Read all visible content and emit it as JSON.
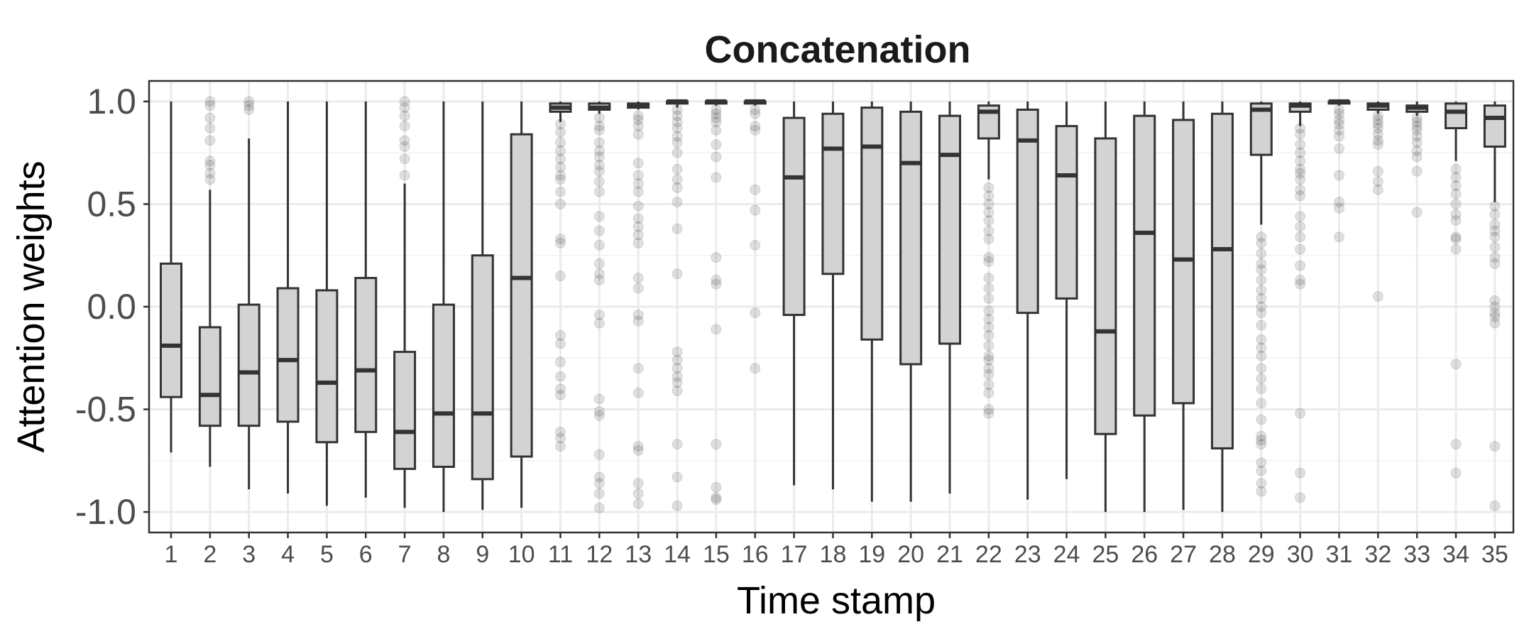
{
  "chart_data": {
    "type": "box",
    "title": "Concatenation",
    "xlabel": "Time stamp",
    "ylabel": "Attention weights",
    "ylim": [
      -1.1,
      1.1
    ],
    "y_ticks": [
      1.0,
      0.5,
      0.0,
      -0.5,
      -1.0
    ],
    "y_tick_labels": [
      "1.0",
      "0.5",
      "0.0",
      "-0.5",
      "-1.0"
    ],
    "grid": true,
    "colors": {
      "box_fill": "#d3d3d3",
      "box_line": "#333333",
      "outlier": "#000000",
      "grid_major": "#ebebeb",
      "grid_minor": "#f2f2f2",
      "panel_border": "#333333"
    },
    "categories": [
      "1",
      "2",
      "3",
      "4",
      "5",
      "6",
      "7",
      "8",
      "9",
      "10",
      "11",
      "12",
      "13",
      "14",
      "15",
      "16",
      "17",
      "18",
      "19",
      "20",
      "21",
      "22",
      "23",
      "24",
      "25",
      "26",
      "27",
      "28",
      "29",
      "30",
      "31",
      "32",
      "33",
      "34",
      "35"
    ],
    "boxes": [
      {
        "category": "1",
        "whisker_low": -0.71,
        "q1": -0.44,
        "median": -0.19,
        "q3": 0.21,
        "whisker_high": 1.0,
        "outliers": []
      },
      {
        "category": "2",
        "whisker_low": -0.78,
        "q1": -0.58,
        "median": -0.43,
        "q3": -0.1,
        "whisker_high": 0.57,
        "outliers": [
          1.0,
          0.98,
          0.92,
          0.87,
          0.81,
          0.71,
          0.69,
          0.65,
          0.62
        ]
      },
      {
        "category": "3",
        "whisker_low": -0.89,
        "q1": -0.58,
        "median": -0.32,
        "q3": 0.01,
        "whisker_high": 0.82,
        "outliers": [
          1.0,
          0.98,
          0.96
        ]
      },
      {
        "category": "4",
        "whisker_low": -0.91,
        "q1": -0.56,
        "median": -0.26,
        "q3": 0.09,
        "whisker_high": 1.0,
        "outliers": []
      },
      {
        "category": "5",
        "whisker_low": -0.97,
        "q1": -0.66,
        "median": -0.37,
        "q3": 0.08,
        "whisker_high": 1.0,
        "outliers": []
      },
      {
        "category": "6",
        "whisker_low": -0.93,
        "q1": -0.61,
        "median": -0.31,
        "q3": 0.14,
        "whisker_high": 1.0,
        "outliers": []
      },
      {
        "category": "7",
        "whisker_low": -0.98,
        "q1": -0.79,
        "median": -0.61,
        "q3": -0.22,
        "whisker_high": 0.6,
        "outliers": [
          1.0,
          0.97,
          0.93,
          0.88,
          0.81,
          0.78,
          0.72,
          0.64
        ]
      },
      {
        "category": "8",
        "whisker_low": -1.0,
        "q1": -0.78,
        "median": -0.52,
        "q3": 0.01,
        "whisker_high": 1.0,
        "outliers": []
      },
      {
        "category": "9",
        "whisker_low": -0.99,
        "q1": -0.84,
        "median": -0.52,
        "q3": 0.25,
        "whisker_high": 1.0,
        "outliers": []
      },
      {
        "category": "10",
        "whisker_low": -0.98,
        "q1": -0.73,
        "median": 0.14,
        "q3": 0.84,
        "whisker_high": 1.0,
        "outliers": []
      },
      {
        "category": "11",
        "whisker_low": 0.9,
        "q1": 0.95,
        "median": 0.97,
        "q3": 0.99,
        "whisker_high": 1.0,
        "outliers": [
          0.89,
          0.85,
          0.8,
          0.76,
          0.72,
          0.68,
          0.64,
          0.62,
          0.56,
          0.5,
          0.33,
          0.31,
          0.15,
          -0.14,
          -0.18,
          -0.27,
          -0.34,
          -0.4,
          -0.43,
          -0.61,
          -0.64,
          -0.68
        ]
      },
      {
        "category": "12",
        "whisker_low": 0.94,
        "q1": 0.96,
        "median": 0.97,
        "q3": 0.99,
        "whisker_high": 1.0,
        "outliers": [
          0.92,
          0.88,
          0.86,
          0.8,
          0.76,
          0.73,
          0.69,
          0.66,
          0.61,
          0.56,
          0.44,
          0.37,
          0.3,
          0.21,
          0.16,
          0.13,
          -0.04,
          -0.08,
          -0.45,
          -0.51,
          -0.53,
          -0.72,
          -0.83,
          -0.86,
          -0.91,
          -0.98
        ]
      },
      {
        "category": "13",
        "whisker_low": 0.96,
        "q1": 0.97,
        "median": 0.98,
        "q3": 0.99,
        "whisker_high": 1.0,
        "outliers": [
          0.93,
          0.91,
          0.88,
          0.84,
          0.7,
          0.64,
          0.6,
          0.56,
          0.49,
          0.43,
          0.39,
          0.35,
          0.31,
          0.14,
          0.09,
          -0.04,
          -0.07,
          -0.3,
          -0.42,
          -0.68,
          -0.7,
          -0.86,
          -0.91,
          -0.96
        ]
      },
      {
        "category": "14",
        "whisker_low": 0.97,
        "q1": 0.99,
        "median": 1.0,
        "q3": 1.0,
        "whisker_high": 1.0,
        "outliers": [
          0.96,
          0.93,
          0.9,
          0.87,
          0.83,
          0.8,
          0.75,
          0.67,
          0.62,
          0.58,
          0.51,
          0.38,
          0.16,
          -0.22,
          -0.26,
          -0.3,
          -0.34,
          -0.37,
          -0.41,
          -0.67,
          -0.83,
          -0.97
        ]
      },
      {
        "category": "15",
        "whisker_low": 0.98,
        "q1": 0.99,
        "median": 1.0,
        "q3": 1.0,
        "whisker_high": 1.0,
        "outliers": [
          0.96,
          0.94,
          0.92,
          0.9,
          0.86,
          0.79,
          0.73,
          0.63,
          0.24,
          0.13,
          0.11,
          -0.11,
          -0.67,
          -0.88,
          -0.93,
          -0.94
        ]
      },
      {
        "category": "16",
        "whisker_low": 0.98,
        "q1": 0.99,
        "median": 1.0,
        "q3": 1.0,
        "whisker_high": 1.0,
        "outliers": [
          0.96,
          0.94,
          0.88,
          0.86,
          0.57,
          0.47,
          0.3,
          -0.03,
          -0.3
        ]
      },
      {
        "category": "17",
        "whisker_low": -0.87,
        "q1": -0.04,
        "median": 0.63,
        "q3": 0.92,
        "whisker_high": 1.0,
        "outliers": []
      },
      {
        "category": "18",
        "whisker_low": -0.89,
        "q1": 0.16,
        "median": 0.77,
        "q3": 0.94,
        "whisker_high": 1.0,
        "outliers": []
      },
      {
        "category": "19",
        "whisker_low": -0.95,
        "q1": -0.16,
        "median": 0.78,
        "q3": 0.97,
        "whisker_high": 1.0,
        "outliers": []
      },
      {
        "category": "20",
        "whisker_low": -0.95,
        "q1": -0.28,
        "median": 0.7,
        "q3": 0.95,
        "whisker_high": 1.0,
        "outliers": []
      },
      {
        "category": "21",
        "whisker_low": -0.91,
        "q1": -0.18,
        "median": 0.74,
        "q3": 0.93,
        "whisker_high": 1.0,
        "outliers": []
      },
      {
        "category": "22",
        "whisker_low": 0.62,
        "q1": 0.82,
        "median": 0.95,
        "q3": 0.98,
        "whisker_high": 1.0,
        "outliers": [
          0.58,
          0.54,
          0.5,
          0.46,
          0.42,
          0.37,
          0.33,
          0.24,
          0.22,
          0.14,
          0.09,
          0.04,
          -0.02,
          -0.06,
          -0.1,
          -0.14,
          -0.19,
          -0.24,
          -0.26,
          -0.3,
          -0.33,
          -0.38,
          -0.42,
          -0.5,
          -0.52
        ]
      },
      {
        "category": "23",
        "whisker_low": -0.94,
        "q1": -0.03,
        "median": 0.81,
        "q3": 0.96,
        "whisker_high": 1.0,
        "outliers": []
      },
      {
        "category": "24",
        "whisker_low": -0.84,
        "q1": 0.04,
        "median": 0.64,
        "q3": 0.88,
        "whisker_high": 1.0,
        "outliers": []
      },
      {
        "category": "25",
        "whisker_low": -1.0,
        "q1": -0.62,
        "median": -0.12,
        "q3": 0.82,
        "whisker_high": 1.0,
        "outliers": []
      },
      {
        "category": "26",
        "whisker_low": -1.0,
        "q1": -0.53,
        "median": 0.36,
        "q3": 0.93,
        "whisker_high": 1.0,
        "outliers": []
      },
      {
        "category": "27",
        "whisker_low": -0.99,
        "q1": -0.47,
        "median": 0.23,
        "q3": 0.91,
        "whisker_high": 1.0,
        "outliers": []
      },
      {
        "category": "28",
        "whisker_low": -1.0,
        "q1": -0.69,
        "median": 0.28,
        "q3": 0.94,
        "whisker_high": 1.0,
        "outliers": []
      },
      {
        "category": "29",
        "whisker_low": 0.4,
        "q1": 0.74,
        "median": 0.96,
        "q3": 0.99,
        "whisker_high": 1.0,
        "outliers": [
          0.34,
          0.31,
          0.26,
          0.21,
          0.18,
          0.13,
          0.08,
          0.04,
          0.0,
          -0.03,
          -0.09,
          -0.16,
          -0.2,
          -0.24,
          -0.3,
          -0.35,
          -0.4,
          -0.47,
          -0.55,
          -0.63,
          -0.65,
          -0.67,
          -0.76,
          -0.8,
          -0.86,
          -0.9
        ]
      },
      {
        "category": "30",
        "whisker_low": 0.88,
        "q1": 0.95,
        "median": 0.98,
        "q3": 0.99,
        "whisker_high": 1.0,
        "outliers": [
          0.87,
          0.84,
          0.79,
          0.75,
          0.71,
          0.67,
          0.65,
          0.62,
          0.57,
          0.54,
          0.44,
          0.39,
          0.34,
          0.28,
          0.2,
          0.13,
          0.11,
          -0.52,
          -0.81,
          -0.93
        ]
      },
      {
        "category": "31",
        "whisker_low": 0.98,
        "q1": 0.99,
        "median": 1.0,
        "q3": 1.0,
        "whisker_high": 1.0,
        "outliers": [
          0.96,
          0.94,
          0.91,
          0.89,
          0.86,
          0.83,
          0.77,
          0.64,
          0.51,
          0.48,
          0.34
        ]
      },
      {
        "category": "32",
        "whisker_low": 0.94,
        "q1": 0.96,
        "median": 0.98,
        "q3": 0.99,
        "whisker_high": 1.0,
        "outliers": [
          0.93,
          0.91,
          0.89,
          0.87,
          0.84,
          0.81,
          0.79,
          0.66,
          0.61,
          0.57,
          0.05
        ]
      },
      {
        "category": "33",
        "whisker_low": 0.93,
        "q1": 0.95,
        "median": 0.97,
        "q3": 0.98,
        "whisker_high": 1.0,
        "outliers": [
          0.92,
          0.9,
          0.88,
          0.86,
          0.83,
          0.8,
          0.76,
          0.73,
          0.66,
          0.46
        ]
      },
      {
        "category": "34",
        "whisker_low": 0.71,
        "q1": 0.87,
        "median": 0.95,
        "q3": 0.99,
        "whisker_high": 1.0,
        "outliers": [
          0.67,
          0.63,
          0.59,
          0.55,
          0.5,
          0.45,
          0.42,
          0.34,
          0.33,
          0.28,
          -0.28,
          -0.67,
          -0.81
        ]
      },
      {
        "category": "35",
        "whisker_low": 0.51,
        "q1": 0.78,
        "median": 0.92,
        "q3": 0.98,
        "whisker_high": 1.0,
        "outliers": [
          0.49,
          0.45,
          0.4,
          0.37,
          0.34,
          0.29,
          0.24,
          0.21,
          0.03,
          0.0,
          -0.03,
          -0.05,
          -0.08,
          -0.68,
          -0.97
        ]
      }
    ]
  }
}
